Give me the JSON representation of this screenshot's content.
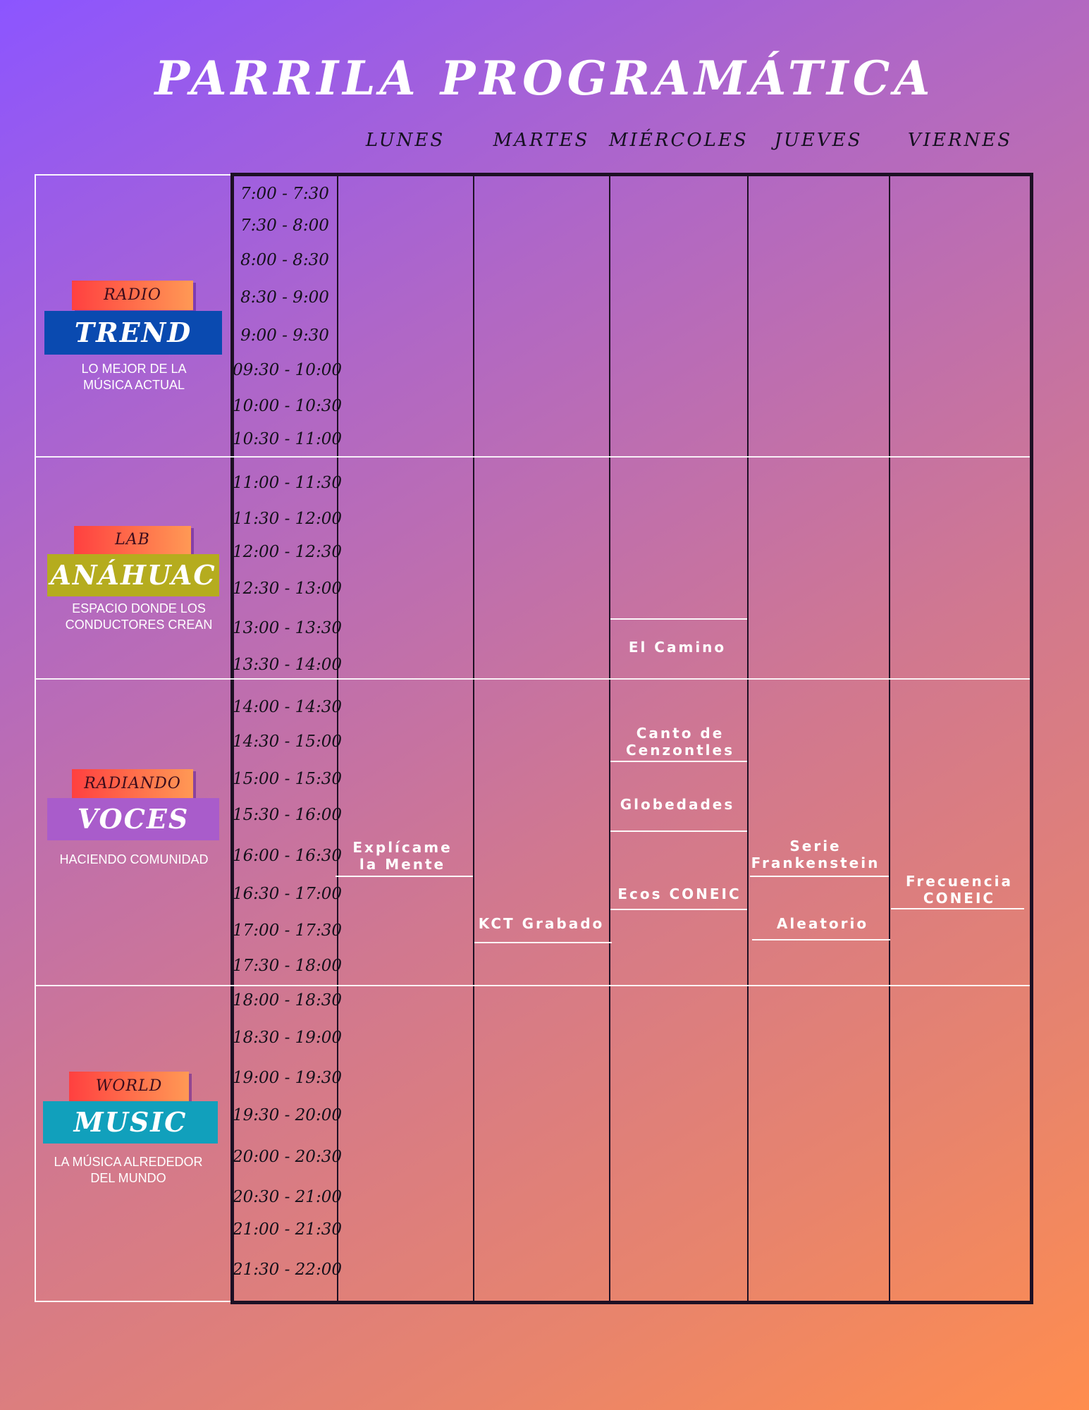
{
  "title": "PARRILA PROGRAMÁTICA",
  "days": [
    "LUNES",
    "MARTES",
    "MIÉRCOLES",
    "JUEVES",
    "VIERNES"
  ],
  "time_slots": [
    "7:00 - 7:30",
    "7:30 - 8:00",
    "8:00 - 8:30",
    "8:30 - 9:00",
    "9:00 - 9:30",
    "09:30 - 10:00",
    "10:00 - 10:30",
    "10:30 - 11:00",
    "11:00 - 11:30",
    "11:30 - 12:00",
    "12:00 - 12:30",
    "12:30 - 13:00",
    "13:00 - 13:30",
    "13:30 - 14:00",
    "14:00 - 14:30",
    "14:30 - 15:00",
    "15:00 - 15:30",
    "15:30 - 16:00",
    "16:00 - 16:30",
    "16:30 - 17:00",
    "17:00 - 17:30",
    "17:30 - 18:00",
    "18:00 - 18:30",
    "18:30 - 19:00",
    "19:00 - 19:30",
    "19:30 - 20:00",
    "20:00 - 20:30",
    "20:30 - 21:00",
    "21:00 - 21:30",
    "21:30 - 22:00"
  ],
  "blocks": [
    {
      "tag": "RADIO",
      "brand": "TREND",
      "brand_color": "#0a4ab0",
      "description": "LO MEJOR DE LA MÚSICA ACTUAL"
    },
    {
      "tag": "LAB",
      "brand": "ANÁHUAC",
      "brand_color": "#b5ac1e",
      "description": "ESPACIO DONDE LOS CONDUCTORES CREAN"
    },
    {
      "tag": "RADIANDO",
      "brand": "VOCES",
      "brand_color": "#a95ccb",
      "description": "HACIENDO  COMUNIDAD"
    },
    {
      "tag": "WORLD",
      "brand": "MUSIC",
      "brand_color": "#11a0bc",
      "description": "LA MÚSICA ALREDEDOR DEL MUNDO"
    }
  ],
  "programs": {
    "lunes": [
      "Explícame la Mente"
    ],
    "martes": [
      "KCT Grabado"
    ],
    "miercoles": [
      "El Camino",
      "Canto de Cenzontles",
      "Globedades",
      "Ecos CONEIC"
    ],
    "jueves": [
      "Serie Frankenstein",
      "Aleatorio"
    ],
    "viernes": [
      "Frecuencia CONEIC"
    ]
  }
}
